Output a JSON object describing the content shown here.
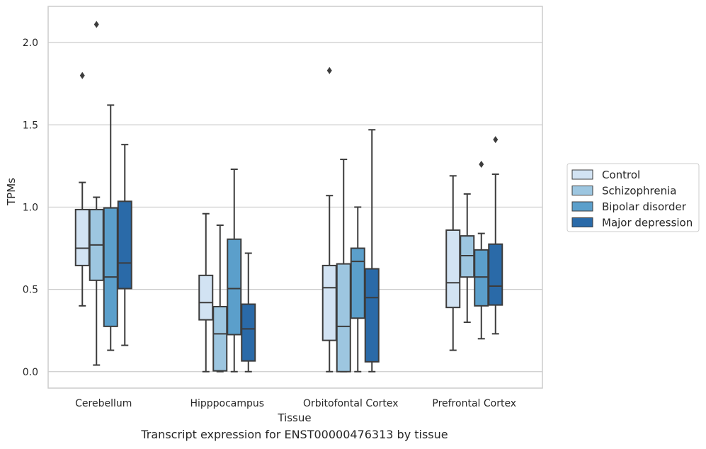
{
  "caption": "Transcript expression for ENST00000476313 by tissue",
  "chart_data": {
    "type": "box",
    "xlabel": "Tissue",
    "ylabel": "TPMs",
    "ylim": [
      -0.1,
      2.22
    ],
    "yticks": [
      0.0,
      0.5,
      1.0,
      1.5,
      2.0
    ],
    "ytick_labels": [
      "0.0",
      "0.5",
      "1.0",
      "1.5",
      "2.0"
    ],
    "grid": "horizontal",
    "legend_position": "right",
    "categories": [
      "Cerebellum",
      "Hipppocampus",
      "Orbitofontal Cortex",
      "Prefrontal Cortex"
    ],
    "series": [
      {
        "name": "Control",
        "color": "#d2e3f3",
        "boxes": [
          {
            "whisker_low": 0.4,
            "q1": 0.645,
            "median": 0.75,
            "q3": 0.985,
            "whisker_high": 1.15,
            "outliers": [
              1.8
            ]
          },
          {
            "whisker_low": 0.0,
            "q1": 0.315,
            "median": 0.42,
            "q3": 0.585,
            "whisker_high": 0.96,
            "outliers": []
          },
          {
            "whisker_low": 0.0,
            "q1": 0.19,
            "median": 0.51,
            "q3": 0.645,
            "whisker_high": 1.07,
            "outliers": [
              1.83
            ]
          },
          {
            "whisker_low": 0.13,
            "q1": 0.39,
            "median": 0.54,
            "q3": 0.86,
            "whisker_high": 1.19,
            "outliers": []
          }
        ]
      },
      {
        "name": "Schizophrenia",
        "color": "#9dc6e0",
        "boxes": [
          {
            "whisker_low": 0.04,
            "q1": 0.555,
            "median": 0.77,
            "q3": 0.985,
            "whisker_high": 1.06,
            "outliers": [
              2.11
            ]
          },
          {
            "whisker_low": 0.0,
            "q1": 0.005,
            "median": 0.23,
            "q3": 0.395,
            "whisker_high": 0.89,
            "outliers": []
          },
          {
            "whisker_low": 0.0,
            "q1": 0.0,
            "median": 0.275,
            "q3": 0.655,
            "whisker_high": 1.29,
            "outliers": []
          },
          {
            "whisker_low": 0.3,
            "q1": 0.575,
            "median": 0.705,
            "q3": 0.825,
            "whisker_high": 1.08,
            "outliers": []
          }
        ]
      },
      {
        "name": "Bipolar disorder",
        "color": "#5b9fcb",
        "boxes": [
          {
            "whisker_low": 0.13,
            "q1": 0.275,
            "median": 0.575,
            "q3": 0.995,
            "whisker_high": 1.62,
            "outliers": []
          },
          {
            "whisker_low": 0.0,
            "q1": 0.225,
            "median": 0.505,
            "q3": 0.805,
            "whisker_high": 1.23,
            "outliers": []
          },
          {
            "whisker_low": 0.0,
            "q1": 0.325,
            "median": 0.67,
            "q3": 0.75,
            "whisker_high": 1.0,
            "outliers": []
          },
          {
            "whisker_low": 0.2,
            "q1": 0.4,
            "median": 0.575,
            "q3": 0.74,
            "whisker_high": 0.84,
            "outliers": [
              1.26
            ]
          }
        ]
      },
      {
        "name": "Major depression",
        "color": "#2a6aa8",
        "boxes": [
          {
            "whisker_low": 0.16,
            "q1": 0.505,
            "median": 0.66,
            "q3": 1.035,
            "whisker_high": 1.38,
            "outliers": []
          },
          {
            "whisker_low": 0.0,
            "q1": 0.065,
            "median": 0.26,
            "q3": 0.41,
            "whisker_high": 0.72,
            "outliers": []
          },
          {
            "whisker_low": 0.0,
            "q1": 0.06,
            "median": 0.45,
            "q3": 0.625,
            "whisker_high": 1.47,
            "outliers": []
          },
          {
            "whisker_low": 0.23,
            "q1": 0.405,
            "median": 0.52,
            "q3": 0.775,
            "whisker_high": 1.2,
            "outliers": [
              1.41
            ]
          }
        ]
      }
    ]
  }
}
